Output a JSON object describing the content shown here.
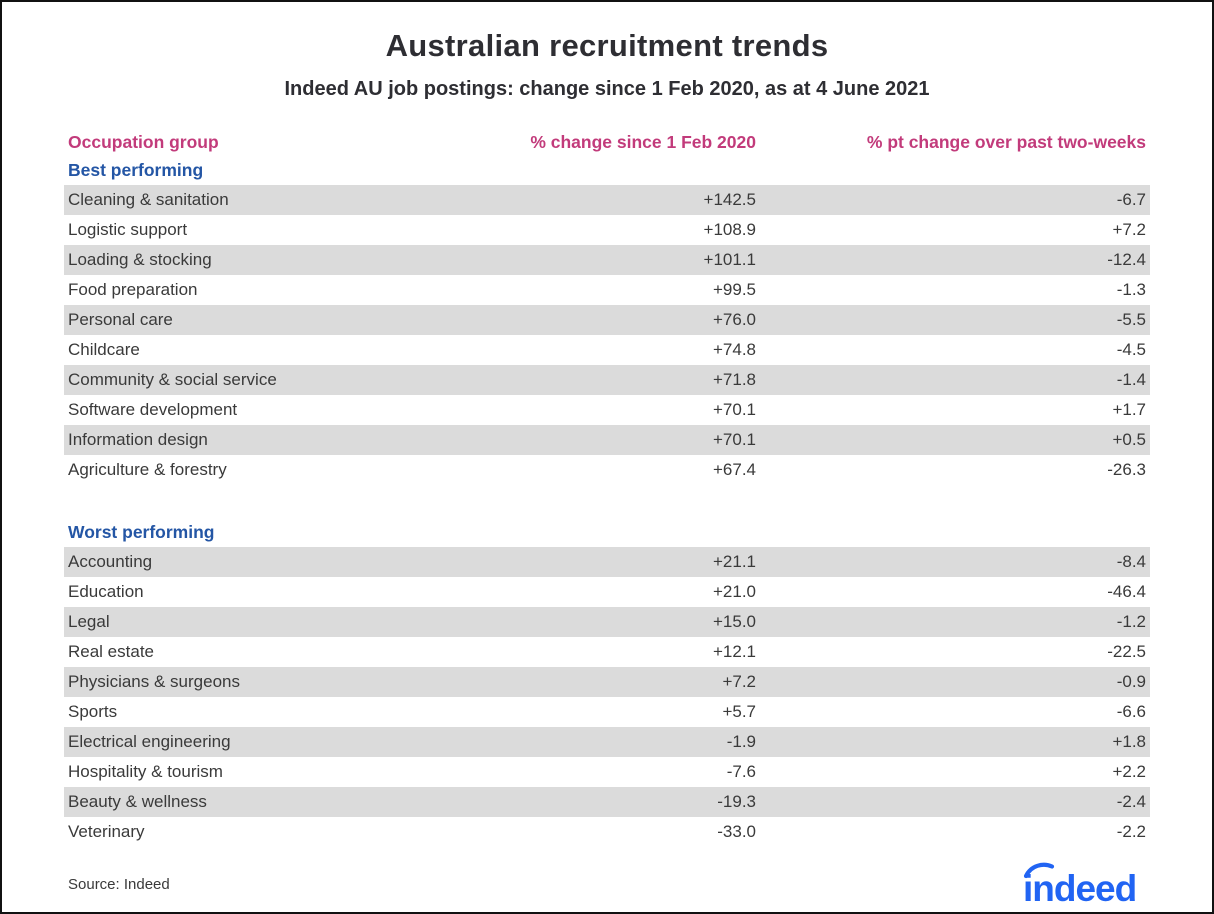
{
  "chart_data": {
    "type": "table",
    "title": "Australian recruitment trends",
    "subtitle": "Indeed AU job postings: change since 1 Feb 2020, as at 4 June 2021",
    "columns": [
      "Occupation group",
      "% change since 1 Feb 2020",
      "% pt change over past two-weeks"
    ],
    "sections": [
      {
        "label": "Best performing",
        "rows": [
          {
            "occupation": "Cleaning & sanitation",
            "change_since_1_feb_2020": 142.5,
            "pt_change_past_two_weeks": -6.7
          },
          {
            "occupation": "Logistic support",
            "change_since_1_feb_2020": 108.9,
            "pt_change_past_two_weeks": 7.2
          },
          {
            "occupation": "Loading & stocking",
            "change_since_1_feb_2020": 101.1,
            "pt_change_past_two_weeks": -12.4
          },
          {
            "occupation": "Food preparation",
            "change_since_1_feb_2020": 99.5,
            "pt_change_past_two_weeks": -1.3
          },
          {
            "occupation": "Personal care",
            "change_since_1_feb_2020": 76.0,
            "pt_change_past_two_weeks": -5.5
          },
          {
            "occupation": "Childcare",
            "change_since_1_feb_2020": 74.8,
            "pt_change_past_two_weeks": -4.5
          },
          {
            "occupation": "Community & social service",
            "change_since_1_feb_2020": 71.8,
            "pt_change_past_two_weeks": -1.4
          },
          {
            "occupation": "Software development",
            "change_since_1_feb_2020": 70.1,
            "pt_change_past_two_weeks": 1.7
          },
          {
            "occupation": "Information design",
            "change_since_1_feb_2020": 70.1,
            "pt_change_past_two_weeks": 0.5
          },
          {
            "occupation": "Agriculture & forestry",
            "change_since_1_feb_2020": 67.4,
            "pt_change_past_two_weeks": -26.3
          }
        ]
      },
      {
        "label": "Worst performing",
        "rows": [
          {
            "occupation": "Accounting",
            "change_since_1_feb_2020": 21.1,
            "pt_change_past_two_weeks": -8.4
          },
          {
            "occupation": "Education",
            "change_since_1_feb_2020": 21.0,
            "pt_change_past_two_weeks": -46.4
          },
          {
            "occupation": "Legal",
            "change_since_1_feb_2020": 15.0,
            "pt_change_past_two_weeks": -1.2
          },
          {
            "occupation": "Real estate",
            "change_since_1_feb_2020": 12.1,
            "pt_change_past_two_weeks": -22.5
          },
          {
            "occupation": "Physicians & surgeons",
            "change_since_1_feb_2020": 7.2,
            "pt_change_past_two_weeks": -0.9
          },
          {
            "occupation": "Sports",
            "change_since_1_feb_2020": 5.7,
            "pt_change_past_two_weeks": -6.6
          },
          {
            "occupation": "Electrical engineering",
            "change_since_1_feb_2020": -1.9,
            "pt_change_past_two_weeks": 1.8
          },
          {
            "occupation": "Hospitality & tourism",
            "change_since_1_feb_2020": -7.6,
            "pt_change_past_two_weeks": 2.2
          },
          {
            "occupation": "Beauty & wellness",
            "change_since_1_feb_2020": -19.3,
            "pt_change_past_two_weeks": -2.4
          },
          {
            "occupation": "Veterinary",
            "change_since_1_feb_2020": -33.0,
            "pt_change_past_two_weeks": -2.2
          }
        ]
      }
    ],
    "value_format": "signed_one_decimal",
    "source": "Source: Indeed",
    "logo": "indeed",
    "layout": {
      "grid": "off",
      "striped_rows": true,
      "stripe_start": "first_row_of_each_section"
    }
  },
  "colors": {
    "column_header_pink": "#c23b7b",
    "section_label_blue": "#2456a5",
    "row_stripe_gray": "#dbdbdb",
    "body_text": "#3a3a3a",
    "title_text": "#2e2e33",
    "logo_blue": "#2164f3",
    "page_border": "#111111"
  }
}
